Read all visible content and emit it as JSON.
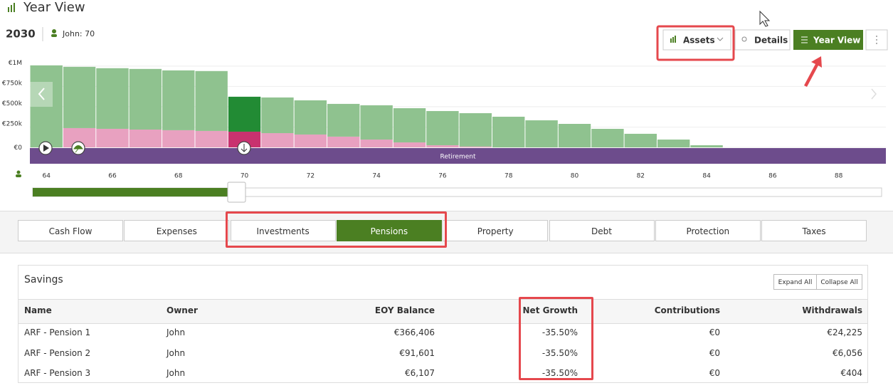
{
  "header": {
    "title": "Year View",
    "year": "2030",
    "person": "John: 70"
  },
  "toolbar": {
    "assets": "Assets",
    "details": "Details",
    "year_view": "Year View"
  },
  "chart_data": {
    "type": "bar",
    "stacked": true,
    "x": [
      64,
      65,
      66,
      67,
      68,
      69,
      70,
      71,
      72,
      73,
      74,
      75,
      76,
      77,
      78,
      79,
      80,
      81,
      82,
      83,
      84
    ],
    "series": [
      {
        "color": "#e8a1c0",
        "highlight_color": "#c8326f",
        "values": [
          0,
          237000,
          228000,
          219000,
          211000,
          202000,
          193000,
          175000,
          158000,
          132000,
          96000,
          61000,
          26000,
          10000,
          0,
          0,
          0,
          0,
          0,
          0,
          0
        ]
      },
      {
        "color": "#8fc28f",
        "highlight_color": "#228b34",
        "values": [
          1009000,
          754000,
          746000,
          746000,
          736000,
          737000,
          430000,
          439000,
          421000,
          403000,
          422000,
          421000,
          421000,
          411000,
          377000,
          333000,
          289000,
          228000,
          167000,
          96000,
          26000
        ]
      }
    ],
    "highlight_x": 70,
    "xlim": [
      63.5,
      89.43
    ],
    "xticks": [
      64,
      66,
      68,
      70,
      72,
      74,
      76,
      78,
      80,
      82,
      84,
      86,
      88
    ],
    "ylim": [
      0,
      1200000
    ],
    "yticks": [
      {
        "value": 0,
        "label": "€0"
      },
      {
        "value": 250000,
        "label": "€250k"
      },
      {
        "value": 500000,
        "label": "€500k"
      },
      {
        "value": 750000,
        "label": "€750k"
      },
      {
        "value": 1000000,
        "label": "€1M"
      }
    ],
    "grid": true,
    "band_label": "Retirement"
  },
  "tabs": {
    "items": [
      "Cash Flow",
      "Expenses",
      "Investments",
      "Pensions",
      "Property",
      "Debt",
      "Protection",
      "Taxes"
    ],
    "active": "Pensions"
  },
  "table": {
    "title": "Savings",
    "buttons": [
      "Expand All",
      "Collapse All"
    ],
    "columns": [
      "Name",
      "Owner",
      "EOY Balance",
      "Net Growth",
      "Contributions",
      "Withdrawals"
    ],
    "rows": [
      [
        "ARF - Pension 1",
        "John",
        "€366,406",
        "-35.50%",
        "€0",
        "€24,225"
      ],
      [
        "ARF - Pension 2",
        "John",
        "€91,601",
        "-35.50%",
        "€0",
        "€6,056"
      ],
      [
        "ARF - Pension 3",
        "John",
        "€6,107",
        "-35.50%",
        "€0",
        "€404"
      ]
    ]
  }
}
